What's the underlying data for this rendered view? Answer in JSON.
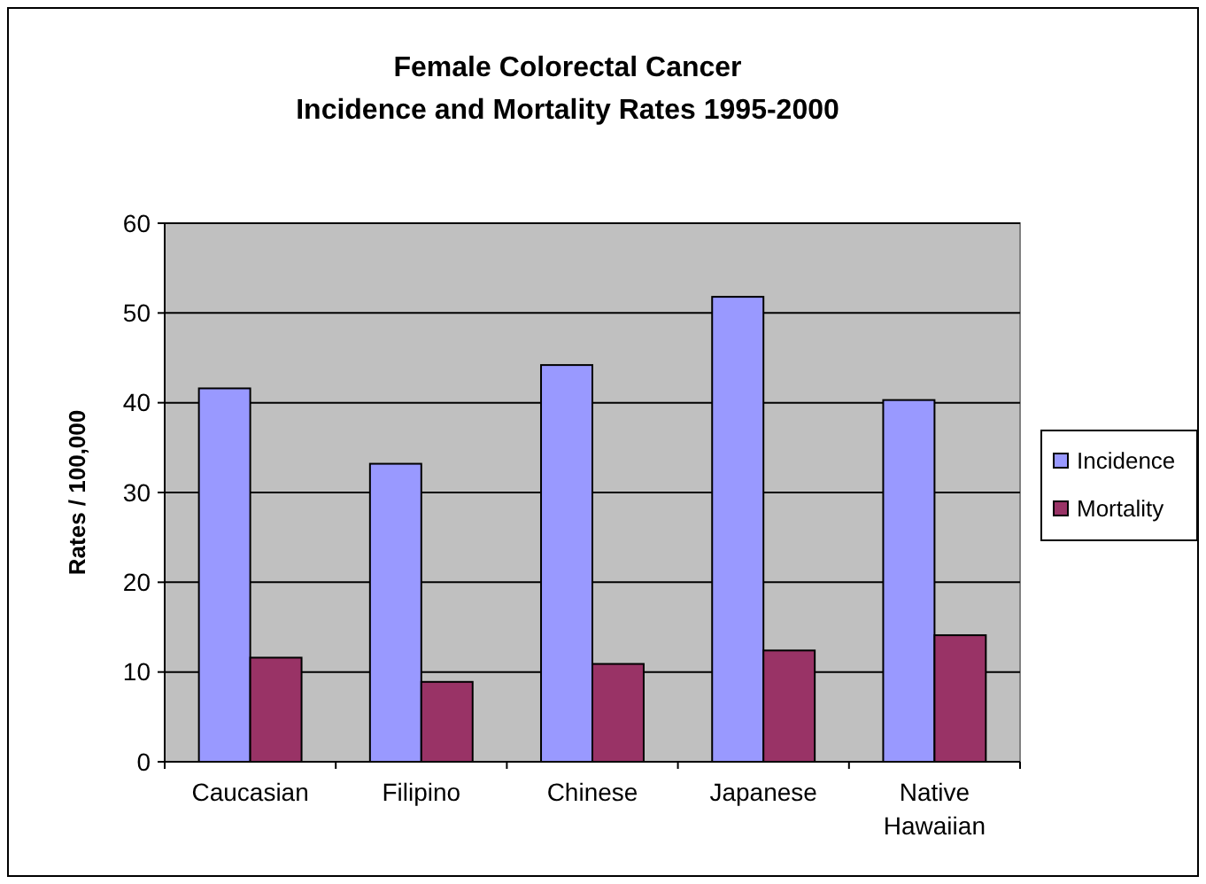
{
  "chart_data": {
    "type": "bar",
    "title": "Female Colorectal Cancer",
    "subtitle": "Incidence and Mortality Rates 1995-2000",
    "ylabel": "Rates / 100,000",
    "categories": [
      "Caucasian",
      "Filipino",
      "Chinese",
      "Japanese",
      "Native Hawaiian"
    ],
    "series": [
      {
        "name": "Incidence",
        "color": "#9999ff",
        "values": [
          41.6,
          33.2,
          44.2,
          51.8,
          40.3
        ]
      },
      {
        "name": "Mortality",
        "color": "#993366",
        "values": [
          11.6,
          8.9,
          10.9,
          12.4,
          14.1
        ]
      }
    ],
    "ylim": [
      0,
      60
    ],
    "yticks": [
      0,
      10,
      20,
      30,
      40,
      50,
      60
    ],
    "grid": "y",
    "legend": "right"
  }
}
